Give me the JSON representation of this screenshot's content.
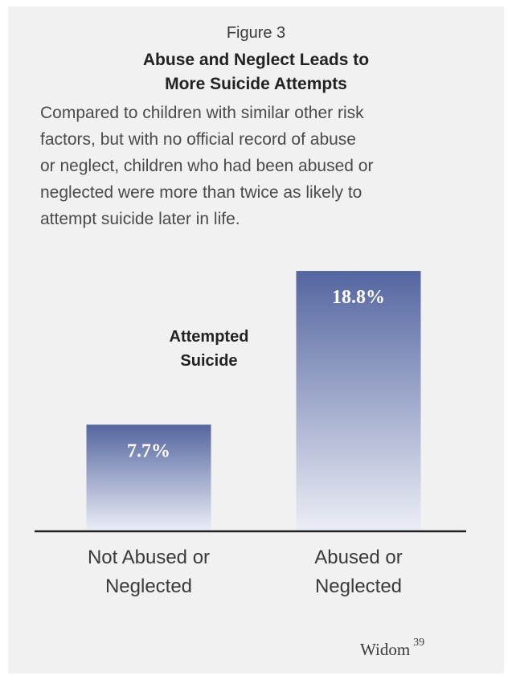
{
  "figure_label": "Figure 3",
  "title_lines": [
    "Abuse and Neglect Leads to",
    "More Suicide Attempts"
  ],
  "description_lines": [
    "Compared to children with similar other risk",
    "factors, but with no official record of abuse",
    "or neglect, children who had been abused or",
    "neglected were more than twice as likely to",
    "attempt suicide later in life."
  ],
  "chart_data": {
    "type": "bar",
    "categories": [
      [
        "Not Abused or",
        "Neglected"
      ],
      [
        "Abused or",
        "Neglected"
      ]
    ],
    "series": [
      {
        "values": [
          7.7,
          18.8
        ],
        "labels": [
          "7.7%",
          "18.8%"
        ]
      }
    ],
    "annotation": [
      "Attempted",
      "Suicide"
    ],
    "ylim": [
      0,
      20
    ],
    "grid": false,
    "legend": "none",
    "colors": {
      "bar_top": "#5466a0",
      "bar_bottom": "#eceef6",
      "bar_label": "#ffffff",
      "axis": "#222222"
    }
  },
  "source": {
    "text": "Widom",
    "ref": "39"
  }
}
